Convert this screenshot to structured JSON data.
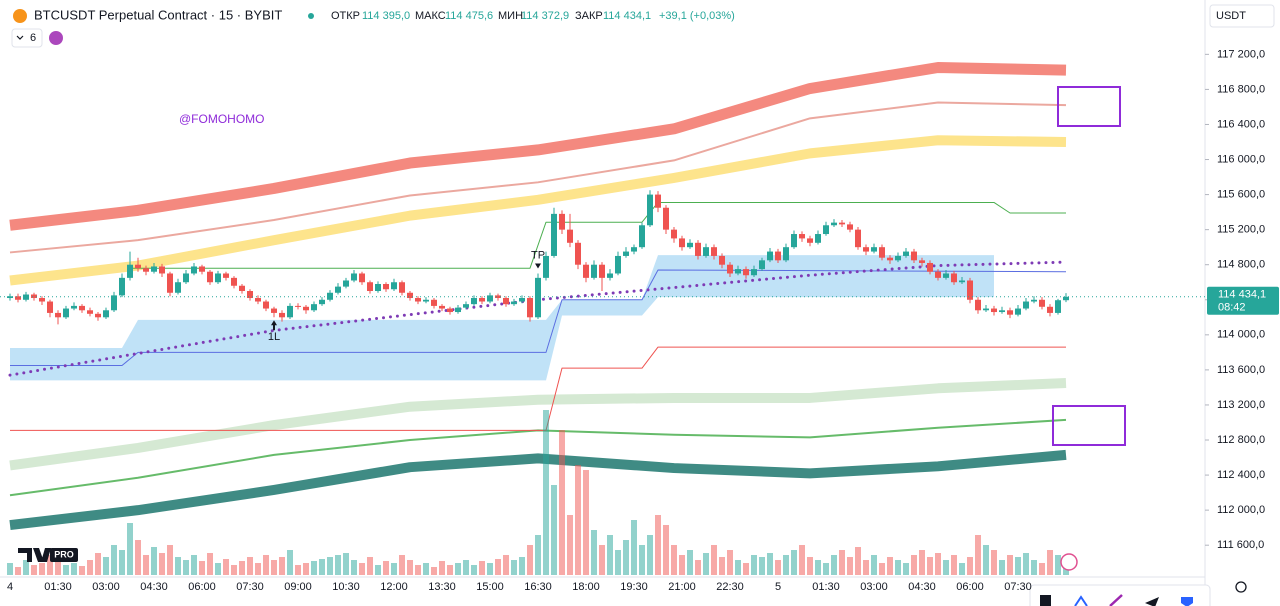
{
  "header": {
    "symbol": "BTCUSDT Perpetual Contract · 15 · BYBIT",
    "open_label": "ОТКР",
    "open": "114 395,0",
    "high_label": "МАКС",
    "high": "114 475,6",
    "low_label": "МИН",
    "low": "114 372,9",
    "close_label": "ЗАКР",
    "close": "114 434,1",
    "change": "+39,1 (+0,03%)",
    "interval": "6",
    "currency": "USDT",
    "logo": "PRO"
  },
  "chart_data": {
    "type": "candlestick",
    "categories": [
      "4",
      null,
      null,
      null,
      null,
      null,
      "01:30",
      null,
      null,
      null,
      null,
      null,
      "03:00",
      null,
      null,
      null,
      null,
      null,
      "04:30",
      null,
      null,
      null,
      null,
      null,
      "06:00",
      null,
      null,
      null,
      null,
      null,
      "07:30",
      null,
      null,
      null,
      null,
      null,
      "09:00",
      null,
      null,
      null,
      null,
      null,
      "10:30",
      null,
      null,
      null,
      null,
      null,
      "12:00",
      null,
      null,
      null,
      null,
      null,
      "13:30",
      null,
      null,
      null,
      null,
      null,
      "15:00",
      null,
      null,
      null,
      null,
      null,
      "16:30",
      null,
      null,
      null,
      null,
      null,
      "18:00",
      null,
      null,
      null,
      null,
      null,
      "19:30",
      null,
      null,
      null,
      null,
      null,
      "21:00",
      null,
      null,
      null,
      null,
      null,
      "22:30",
      null,
      null,
      null,
      null,
      null,
      "5",
      null,
      null,
      null,
      null,
      null,
      "01:30",
      null,
      null,
      null,
      null,
      null,
      "03:00",
      null,
      null,
      null,
      null,
      null,
      "04:30",
      null,
      null,
      null,
      null,
      null,
      "06:00",
      null,
      null,
      null,
      null,
      null,
      "07:30",
      null,
      null,
      null,
      null,
      null,
      null
    ],
    "candles": [
      [
        114420,
        114470,
        114390,
        114440
      ],
      [
        114440,
        114470,
        114370,
        114400
      ],
      [
        114400,
        114490,
        114380,
        114460
      ],
      [
        114460,
        114480,
        114390,
        114420
      ],
      [
        114420,
        114440,
        114340,
        114380
      ],
      [
        114380,
        114400,
        114200,
        114250
      ],
      [
        114250,
        114280,
        114120,
        114200
      ],
      [
        114200,
        114330,
        114180,
        114300
      ],
      [
        114300,
        114370,
        114280,
        114330
      ],
      [
        114330,
        114350,
        114250,
        114280
      ],
      [
        114280,
        114310,
        114210,
        114240
      ],
      [
        114240,
        114260,
        114160,
        114200
      ],
      [
        114200,
        114310,
        114180,
        114280
      ],
      [
        114280,
        114490,
        114260,
        114450
      ],
      [
        114450,
        114700,
        114430,
        114650
      ],
      [
        114650,
        114950,
        114620,
        114800
      ],
      [
        114800,
        114880,
        114720,
        114760
      ],
      [
        114760,
        114790,
        114680,
        114720
      ],
      [
        114720,
        114820,
        114700,
        114780
      ],
      [
        114780,
        114810,
        114660,
        114700
      ],
      [
        114700,
        114720,
        114440,
        114480
      ],
      [
        114480,
        114640,
        114460,
        114600
      ],
      [
        114600,
        114740,
        114580,
        114700
      ],
      [
        114700,
        114820,
        114680,
        114780
      ],
      [
        114780,
        114800,
        114690,
        114720
      ],
      [
        114720,
        114740,
        114570,
        114600
      ],
      [
        114600,
        114730,
        114580,
        114700
      ],
      [
        114700,
        114720,
        114620,
        114650
      ],
      [
        114650,
        114670,
        114530,
        114560
      ],
      [
        114560,
        114580,
        114470,
        114500
      ],
      [
        114500,
        114520,
        114390,
        114420
      ],
      [
        114420,
        114450,
        114350,
        114380
      ],
      [
        114380,
        114400,
        114270,
        114300
      ],
      [
        114300,
        114320,
        114200,
        114250
      ],
      [
        114250,
        114280,
        114150,
        114200
      ],
      [
        114200,
        114360,
        114180,
        114330
      ],
      [
        114330,
        114360,
        114290,
        114320
      ],
      [
        114320,
        114340,
        114240,
        114280
      ],
      [
        114280,
        114380,
        114260,
        114350
      ],
      [
        114350,
        114430,
        114330,
        114400
      ],
      [
        114400,
        114510,
        114380,
        114480
      ],
      [
        114480,
        114590,
        114460,
        114550
      ],
      [
        114550,
        114650,
        114530,
        114620
      ],
      [
        114620,
        114740,
        114600,
        114700
      ],
      [
        114700,
        114720,
        114570,
        114600
      ],
      [
        114600,
        114620,
        114470,
        114500
      ],
      [
        114500,
        114610,
        114480,
        114580
      ],
      [
        114580,
        114600,
        114490,
        114520
      ],
      [
        114520,
        114640,
        114500,
        114600
      ],
      [
        114600,
        114620,
        114450,
        114480
      ],
      [
        114480,
        114500,
        114390,
        114420
      ],
      [
        114420,
        114440,
        114350,
        114380
      ],
      [
        114380,
        114430,
        114360,
        114400
      ],
      [
        114400,
        114420,
        114300,
        114330
      ],
      [
        114330,
        114350,
        114270,
        114300
      ],
      [
        114300,
        114320,
        114230,
        114260
      ],
      [
        114260,
        114340,
        114240,
        114310
      ],
      [
        114310,
        114380,
        114290,
        114350
      ],
      [
        114350,
        114450,
        114330,
        114420
      ],
      [
        114420,
        114440,
        114350,
        114380
      ],
      [
        114380,
        114480,
        114360,
        114450
      ],
      [
        114450,
        114470,
        114390,
        114420
      ],
      [
        114420,
        114440,
        114320,
        114350
      ],
      [
        114350,
        114410,
        114330,
        114380
      ],
      [
        114380,
        114450,
        114360,
        114420
      ],
      [
        114420,
        114440,
        114150,
        114200
      ],
      [
        114200,
        114700,
        114180,
        114650
      ],
      [
        114650,
        114950,
        114620,
        114900
      ],
      [
        114900,
        115450,
        114880,
        115380
      ],
      [
        115380,
        115420,
        115150,
        115200
      ],
      [
        115200,
        115380,
        115000,
        115050
      ],
      [
        115050,
        115080,
        114750,
        114800
      ],
      [
        114800,
        114830,
        114600,
        114650
      ],
      [
        114650,
        114850,
        114630,
        114800
      ],
      [
        114800,
        114830,
        114500,
        114650
      ],
      [
        114650,
        114750,
        114620,
        114700
      ],
      [
        114700,
        114950,
        114680,
        114900
      ],
      [
        114900,
        115000,
        114880,
        114950
      ],
      [
        114950,
        115030,
        114920,
        115000
      ],
      [
        115000,
        115280,
        114980,
        115250
      ],
      [
        115250,
        115650,
        115230,
        115600
      ],
      [
        115600,
        115640,
        115400,
        115450
      ],
      [
        115450,
        115480,
        115150,
        115200
      ],
      [
        115200,
        115230,
        115050,
        115100
      ],
      [
        115100,
        115130,
        114960,
        115000
      ],
      [
        115000,
        115090,
        114980,
        115050
      ],
      [
        115050,
        115080,
        114860,
        114900
      ],
      [
        114900,
        115040,
        114880,
        115000
      ],
      [
        115000,
        115030,
        114860,
        114900
      ],
      [
        114900,
        114930,
        114760,
        114800
      ],
      [
        114800,
        114830,
        114660,
        114700
      ],
      [
        114700,
        114790,
        114680,
        114750
      ],
      [
        114750,
        114780,
        114640,
        114680
      ],
      [
        114680,
        114790,
        114660,
        114750
      ],
      [
        114750,
        114880,
        114730,
        114850
      ],
      [
        114850,
        114990,
        114830,
        114950
      ],
      [
        114950,
        114980,
        114820,
        114850
      ],
      [
        114850,
        115040,
        114830,
        115000
      ],
      [
        115000,
        115190,
        114980,
        115150
      ],
      [
        115150,
        115180,
        115060,
        115100
      ],
      [
        115100,
        115130,
        115010,
        115050
      ],
      [
        115050,
        115190,
        115030,
        115150
      ],
      [
        115150,
        115290,
        115130,
        115250
      ],
      [
        115250,
        115320,
        115230,
        115280
      ],
      [
        115280,
        115310,
        115230,
        115260
      ],
      [
        115260,
        115290,
        115170,
        115200
      ],
      [
        115200,
        115230,
        114970,
        115000
      ],
      [
        115000,
        115030,
        114910,
        114950
      ],
      [
        114950,
        115040,
        114930,
        115000
      ],
      [
        115000,
        115030,
        114850,
        114880
      ],
      [
        114880,
        114910,
        114810,
        114850
      ],
      [
        114850,
        114940,
        114830,
        114900
      ],
      [
        114900,
        114990,
        114880,
        114950
      ],
      [
        114950,
        114980,
        114820,
        114850
      ],
      [
        114850,
        114880,
        114780,
        114820
      ],
      [
        114820,
        114850,
        114690,
        114720
      ],
      [
        114720,
        114750,
        114620,
        114650
      ],
      [
        114650,
        114740,
        114630,
        114700
      ],
      [
        114700,
        114730,
        114570,
        114600
      ],
      [
        114600,
        114660,
        114580,
        114620
      ],
      [
        114620,
        114650,
        114360,
        114400
      ],
      [
        114400,
        114430,
        114240,
        114280
      ],
      [
        114280,
        114340,
        114260,
        114300
      ],
      [
        114300,
        114330,
        114220,
        114260
      ],
      [
        114260,
        114320,
        114240,
        114280
      ],
      [
        114280,
        114310,
        114190,
        114230
      ],
      [
        114230,
        114340,
        114210,
        114300
      ],
      [
        114300,
        114420,
        114280,
        114380
      ],
      [
        114380,
        114440,
        114360,
        114400
      ],
      [
        114400,
        114430,
        114290,
        114320
      ],
      [
        114320,
        114350,
        114210,
        114250
      ],
      [
        114250,
        114410,
        114230,
        114395
      ],
      [
        114395,
        114475.6,
        114372.9,
        114434.1
      ]
    ],
    "volume": [
      12,
      8,
      15,
      10,
      12,
      20,
      14,
      10,
      12,
      9,
      15,
      22,
      18,
      30,
      25,
      52,
      35,
      20,
      28,
      22,
      30,
      18,
      15,
      20,
      14,
      22,
      12,
      16,
      10,
      14,
      18,
      12,
      20,
      15,
      18,
      25,
      10,
      12,
      14,
      16,
      18,
      20,
      22,
      15,
      12,
      18,
      10,
      14,
      12,
      20,
      15,
      10,
      12,
      8,
      14,
      10,
      12,
      15,
      10,
      14,
      12,
      16,
      20,
      15,
      18,
      30,
      40,
      165,
      90,
      145,
      60,
      110,
      105,
      45,
      30,
      40,
      25,
      35,
      55,
      30,
      40,
      60,
      50,
      30,
      20,
      25,
      15,
      22,
      30,
      18,
      25,
      15,
      12,
      20,
      18,
      22,
      15,
      20,
      25,
      30,
      18,
      15,
      12,
      20,
      25,
      18,
      28,
      15,
      20,
      12,
      18,
      15,
      12,
      20,
      25,
      18,
      22,
      15,
      20,
      12,
      18,
      40,
      30,
      25,
      15,
      20,
      18,
      22,
      15,
      12,
      25,
      20,
      18
    ],
    "ylim": [
      111260,
      117820
    ],
    "yticks": [
      {
        "value": 117200,
        "label": "117 200,0"
      },
      {
        "value": 116800,
        "label": "116 800,0"
      },
      {
        "value": 116400,
        "label": "116 400,0"
      },
      {
        "value": 116000,
        "label": "116 000,0"
      },
      {
        "value": 115600,
        "label": "115 600,0"
      },
      {
        "value": 115200,
        "label": "115 200,0"
      },
      {
        "value": 114800,
        "label": "114 800,0"
      },
      {
        "value": 114400,
        "label": "114 400,0"
      },
      {
        "value": 114000,
        "label": "114 000,0"
      },
      {
        "value": 113600,
        "label": "113 600,0"
      },
      {
        "value": 113200,
        "label": "113 200,0"
      },
      {
        "value": 112800,
        "label": "112 800,0"
      },
      {
        "value": 112400,
        "label": "112 400,0"
      },
      {
        "value": 112000,
        "label": "112 000,0"
      },
      {
        "value": 111600,
        "label": "111 600,0"
      }
    ],
    "band": {
      "color": "#8ccbf0",
      "x": [
        0,
        14,
        16,
        67,
        69,
        79,
        81,
        123
      ],
      "upper": [
        113850,
        113850,
        114170,
        114170,
        114400,
        114400,
        114910,
        114910
      ],
      "lower": [
        113480,
        113480,
        113480,
        113480,
        114220,
        114220,
        114430,
        114430
      ]
    },
    "lines": [
      {
        "color": "#f4897f",
        "x": [
          0,
          16,
          33,
          50,
          66,
          83,
          100,
          116,
          132
        ],
        "values": [
          115250,
          115420,
          115670,
          115960,
          116110,
          116350,
          116810,
          117050,
          117020
        ]
      },
      {
        "color": "#eba89f",
        "x": [
          0,
          16,
          33,
          50,
          66,
          83,
          100,
          116,
          132
        ],
        "values": [
          114940,
          115080,
          115310,
          115590,
          115740,
          115990,
          116470,
          116650,
          116620
        ]
      },
      {
        "color": "#fde48c",
        "x": [
          0,
          16,
          33,
          50,
          66,
          83,
          100,
          116,
          132
        ],
        "values": [
          114620,
          114790,
          115080,
          115360,
          115540,
          115790,
          116070,
          116220,
          116200
        ]
      },
      {
        "color": "#d5e9d3",
        "x": [
          0,
          16,
          33,
          50,
          66,
          83,
          100,
          116,
          132
        ],
        "values": [
          112510,
          112710,
          112970,
          113180,
          113260,
          113280,
          113280,
          113390,
          113450
        ]
      },
      {
        "color": "#66bb6a",
        "x": [
          0,
          16,
          33,
          50,
          66,
          83,
          100,
          116,
          132
        ],
        "values": [
          112170,
          112370,
          112630,
          112800,
          112910,
          112860,
          112830,
          112940,
          113030
        ]
      },
      {
        "color": "#3f8b84",
        "x": [
          0,
          16,
          33,
          50,
          66,
          83,
          100,
          116,
          132
        ],
        "values": [
          111830,
          112000,
          112230,
          112490,
          112590,
          112480,
          112420,
          112500,
          112630
        ]
      },
      {
        "color": "#4caf50",
        "x": [
          15,
          65,
          67,
          79,
          81,
          123,
          125,
          132
        ],
        "values": [
          114760,
          114760,
          115285,
          115285,
          115510,
          115510,
          115390,
          115390
        ]
      },
      {
        "color": "#ef5350",
        "x": [
          0,
          67,
          69,
          79,
          81,
          132
        ],
        "values": [
          112910,
          112910,
          113620,
          113620,
          113860,
          113860
        ]
      },
      {
        "color": "#5b6ee1",
        "x": [
          0,
          14,
          16,
          67,
          69,
          79,
          81,
          132
        ],
        "values": [
          113650,
          113650,
          113800,
          113800,
          114400,
          114400,
          114740,
          114720
        ]
      },
      {
        "color": "#7e3bb5",
        "style": "dotted",
        "x": [
          0,
          33,
          66,
          100,
          116,
          132
        ],
        "values": [
          113540,
          114050,
          114400,
          114680,
          114790,
          114830
        ]
      }
    ],
    "annotations": [
      {
        "text": "TP",
        "index": 66,
        "side": "above"
      },
      {
        "text": "1L",
        "index": 33,
        "side": "below"
      }
    ],
    "watermark": "@FOMOHOMO",
    "last_price": {
      "label": "114 434,1",
      "countdown": "08:42"
    },
    "up_color": "#26a69a",
    "down_color": "#ef5350"
  }
}
